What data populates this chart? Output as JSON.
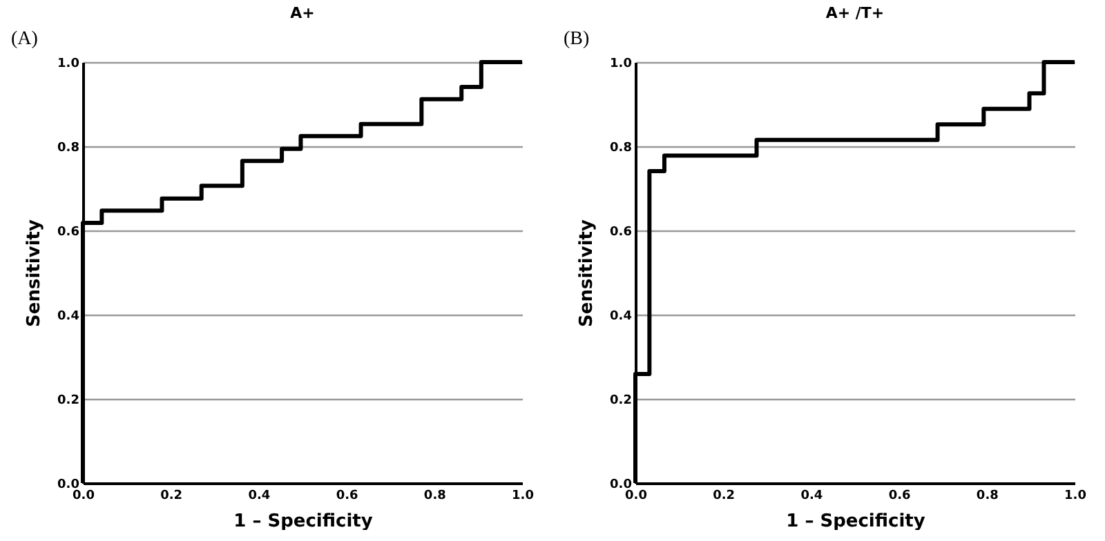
{
  "chart_data": [
    {
      "type": "step",
      "title": "A+",
      "xlabel": "1 – Specificity",
      "ylabel": "Sensitivity",
      "annotations": [
        "(A)"
      ],
      "x": [
        0,
        0,
        0.043,
        0.18,
        0.27,
        0.363,
        0.453,
        0.496,
        0.633,
        0.771,
        0.862,
        0.907,
        1
      ],
      "series": [
        {
          "color": "#000000",
          "values": [
            0,
            0.618,
            0.647,
            0.676,
            0.706,
            0.765,
            0.794,
            0.824,
            0.853,
            0.912,
            0.941,
            1,
            1
          ]
        }
      ],
      "xlim": [
        0,
        1
      ],
      "ylim": [
        0,
        1
      ],
      "xticks": [
        {
          "value": 0,
          "label": "0.0"
        },
        {
          "value": 0.2,
          "label": "0.2"
        },
        {
          "value": 0.4,
          "label": "0.4"
        },
        {
          "value": 0.6,
          "label": "0.6"
        },
        {
          "value": 0.8,
          "label": "0.8"
        },
        {
          "value": 1,
          "label": "1.0"
        }
      ],
      "yticks": [
        {
          "value": 0,
          "label": "0.0"
        },
        {
          "value": 0.2,
          "label": "0.2"
        },
        {
          "value": 0.4,
          "label": "0.4"
        },
        {
          "value": 0.6,
          "label": "0.6"
        },
        {
          "value": 0.8,
          "label": "0.8"
        },
        {
          "value": 1,
          "label": "1.0"
        }
      ],
      "grid": "y"
    },
    {
      "type": "step",
      "title": "A+ /T+",
      "xlabel": "1 – Specificity",
      "ylabel": "Sensitivity",
      "annotations": [
        "(B)"
      ],
      "x": [
        0,
        0,
        0.032,
        0.066,
        0.276,
        0.688,
        0.793,
        0.897,
        0.93,
        1
      ],
      "series": [
        {
          "color": "#000000",
          "values": [
            0,
            0.259,
            0.741,
            0.778,
            0.815,
            0.852,
            0.889,
            0.926,
            1,
            1
          ]
        }
      ],
      "xlim": [
        0,
        1
      ],
      "ylim": [
        0,
        1
      ],
      "xticks": [
        {
          "value": 0,
          "label": "0.0"
        },
        {
          "value": 0.2,
          "label": "0.2"
        },
        {
          "value": 0.4,
          "label": "0.4"
        },
        {
          "value": 0.6,
          "label": "0.6"
        },
        {
          "value": 0.8,
          "label": "0.8"
        },
        {
          "value": 1,
          "label": "1.0"
        }
      ],
      "yticks": [
        {
          "value": 0,
          "label": "0.0"
        },
        {
          "value": 0.2,
          "label": "0.2"
        },
        {
          "value": 0.4,
          "label": "0.4"
        },
        {
          "value": 0.6,
          "label": "0.6"
        },
        {
          "value": 0.8,
          "label": "0.8"
        },
        {
          "value": 1,
          "label": "1.0"
        }
      ],
      "grid": "y"
    }
  ]
}
